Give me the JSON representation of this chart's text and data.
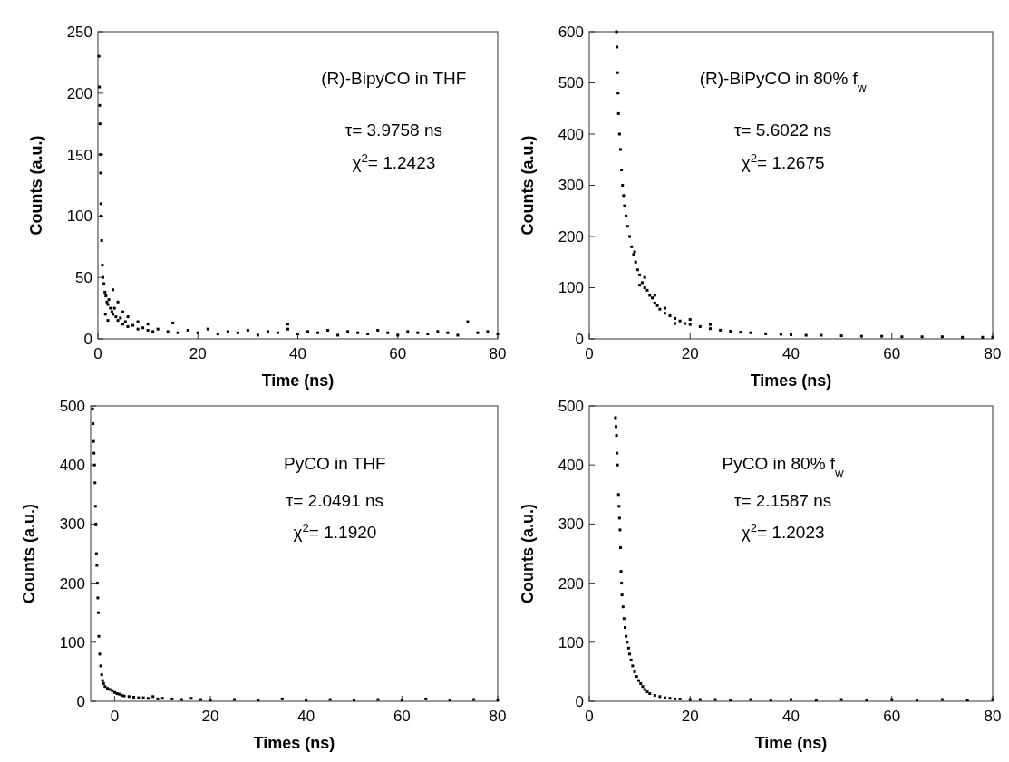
{
  "chart_data": [
    {
      "type": "scatter",
      "xlabel": "Time (ns)",
      "ylabel": "Counts (a.u.)",
      "annotations": [
        "(R)-BipyCO in THF",
        "τ= 3.9758 ns",
        "χ$^{2}$= 1.2423"
      ],
      "marker": "square",
      "color": "#000000",
      "x": [
        0.2,
        0.3,
        0.35,
        0.4,
        0.5,
        0.55,
        0.6,
        0.65,
        0.75,
        0.9,
        1.0,
        1.2,
        1.4,
        1.5,
        1.6,
        1.8,
        2.0,
        2.0,
        2.2,
        2.5,
        2.8,
        3.0,
        3.0,
        3.3,
        3.6,
        4,
        4,
        4.5,
        5,
        5,
        5.5,
        6,
        6,
        7,
        8,
        8,
        9,
        10,
        10,
        11,
        12,
        14,
        15,
        16,
        18,
        20,
        22,
        24,
        26,
        28,
        30,
        32,
        34,
        36,
        38,
        38,
        40,
        42,
        44,
        46,
        48,
        50,
        52,
        54,
        56,
        58,
        60,
        62,
        64,
        66,
        68,
        70,
        72,
        74,
        76,
        78,
        80
      ],
      "values": [
        230,
        205,
        190,
        175,
        150,
        135,
        110,
        100,
        80,
        60,
        50,
        45,
        38,
        20,
        35,
        30,
        28,
        15,
        32,
        25,
        22,
        20,
        40,
        25,
        18,
        15,
        30,
        17,
        12,
        22,
        14,
        10,
        18,
        11,
        8,
        14,
        9,
        7,
        12,
        6,
        8,
        6,
        13,
        5,
        7,
        5,
        8,
        4,
        6,
        5,
        7,
        3,
        6,
        5,
        8,
        12,
        4,
        6,
        5,
        7,
        3,
        6,
        5,
        4,
        7,
        5,
        3,
        6,
        5,
        4,
        6,
        5,
        3,
        14,
        5,
        6,
        4
      ],
      "xlim": [
        0,
        80
      ],
      "xticks": [
        0,
        20,
        40,
        60,
        80
      ],
      "ylim": [
        0,
        250
      ],
      "yticks": [
        0,
        50,
        100,
        150,
        200,
        250
      ]
    },
    {
      "type": "scatter",
      "xlabel": "Times (ns)",
      "ylabel": "Counts (a.u.)",
      "annotations": [
        "(R)-BiPyCO in 80% f$_{w}$",
        "τ= 5.6022 ns",
        "χ$^{2}$= 1.2675"
      ],
      "marker": "square",
      "color": "#000000",
      "x": [
        5.4,
        5.5,
        5.6,
        5.7,
        5.8,
        6.0,
        6.2,
        6.4,
        6.6,
        6.8,
        7.0,
        7.3,
        7.6,
        8.0,
        8.4,
        8.8,
        9,
        9.2,
        9.6,
        10,
        10,
        10.5,
        11,
        11,
        11.5,
        12,
        12.5,
        13,
        13,
        13.5,
        14,
        15,
        15,
        16,
        17,
        17,
        18,
        19,
        20,
        20,
        22,
        24,
        24,
        26,
        28,
        30,
        32,
        35,
        38,
        40,
        43,
        46,
        50,
        54,
        58,
        62,
        66,
        70,
        74,
        78,
        80
      ],
      "values": [
        600,
        570,
        520,
        480,
        440,
        400,
        370,
        330,
        300,
        280,
        260,
        240,
        220,
        200,
        180,
        165,
        170,
        150,
        135,
        125,
        105,
        110,
        100,
        120,
        95,
        85,
        80,
        70,
        85,
        65,
        58,
        50,
        60,
        45,
        40,
        30,
        35,
        30,
        28,
        38,
        24,
        20,
        28,
        17,
        15,
        13,
        12,
        10,
        9,
        8,
        7,
        7,
        6,
        5,
        5,
        4,
        4,
        4,
        3,
        3,
        3
      ],
      "xlim": [
        0,
        80
      ],
      "xticks": [
        0,
        20,
        40,
        60,
        80
      ],
      "ylim": [
        0,
        600
      ],
      "yticks": [
        0,
        100,
        200,
        300,
        400,
        500,
        600
      ]
    },
    {
      "type": "scatter",
      "xlabel": "Times (ns)",
      "ylabel": "Counts (a.u.)",
      "annotations": [
        "PyCO in THF",
        "τ= 2.0491 ns",
        "χ$^{2}$= 1.1920"
      ],
      "marker": "square",
      "color": "#000000",
      "x": [
        -4.6,
        -4.5,
        -4.4,
        -4.3,
        -4.2,
        -4.1,
        -4.0,
        -3.9,
        -3.8,
        -3.7,
        -3.6,
        -3.5,
        -3.4,
        -3.3,
        -3.1,
        -2.9,
        -2.7,
        -2.5,
        -2.3,
        -2,
        -1.5,
        -1,
        -0.5,
        0,
        0.5,
        1,
        1.5,
        2,
        3,
        4,
        5,
        6,
        7,
        8,
        9,
        10,
        12,
        14,
        16,
        18,
        20,
        25,
        30,
        35,
        40,
        45,
        50,
        55,
        60,
        65,
        70,
        75,
        80
      ],
      "values": [
        495,
        470,
        440,
        420,
        400,
        370,
        330,
        300,
        250,
        230,
        200,
        175,
        150,
        110,
        80,
        60,
        45,
        35,
        30,
        25,
        22,
        20,
        18,
        15,
        13,
        12,
        10,
        9,
        8,
        7,
        6,
        6,
        5,
        8,
        4,
        5,
        4,
        3,
        5,
        3,
        2,
        3,
        2,
        4,
        2,
        3,
        2,
        3,
        2,
        4,
        2,
        3,
        2
      ],
      "xlim": [
        -5,
        80
      ],
      "xticks": [
        0,
        20,
        40,
        60,
        80
      ],
      "ylim": [
        0,
        500
      ],
      "yticks": [
        0,
        100,
        200,
        300,
        400,
        500
      ]
    },
    {
      "type": "scatter",
      "xlabel": "Time (ns)",
      "ylabel": "Counts (a.u.)",
      "annotations": [
        "PyCO in 80% f$_{w}$",
        "τ= 2.1587 ns",
        "χ$^{2}$= 1.2023"
      ],
      "marker": "square",
      "color": "#000000",
      "x": [
        5.2,
        5.3,
        5.4,
        5.5,
        5.6,
        5.8,
        5.9,
        6.0,
        6.1,
        6.2,
        6.3,
        6.4,
        6.5,
        6.7,
        6.9,
        7.1,
        7.3,
        7.5,
        7.8,
        8.0,
        8.3,
        8.6,
        9.0,
        9.4,
        9.8,
        10.2,
        10.6,
        11,
        11.5,
        12,
        13,
        14,
        15,
        16,
        17,
        18,
        20,
        22,
        25,
        28,
        32,
        36,
        40,
        45,
        50,
        55,
        60,
        65,
        70,
        75,
        80
      ],
      "values": [
        480,
        465,
        450,
        420,
        400,
        350,
        330,
        310,
        290,
        260,
        220,
        200,
        180,
        160,
        140,
        125,
        110,
        100,
        90,
        80,
        70,
        60,
        50,
        42,
        35,
        30,
        25,
        20,
        16,
        13,
        10,
        8,
        6,
        5,
        4,
        4,
        3,
        3,
        3,
        2,
        3,
        2,
        3,
        2,
        3,
        2,
        3,
        2,
        3,
        2,
        3
      ],
      "xlim": [
        0,
        80
      ],
      "xticks": [
        0,
        20,
        40,
        60,
        80
      ],
      "ylim": [
        0,
        500
      ],
      "yticks": [
        0,
        100,
        200,
        300,
        400,
        500
      ]
    }
  ]
}
